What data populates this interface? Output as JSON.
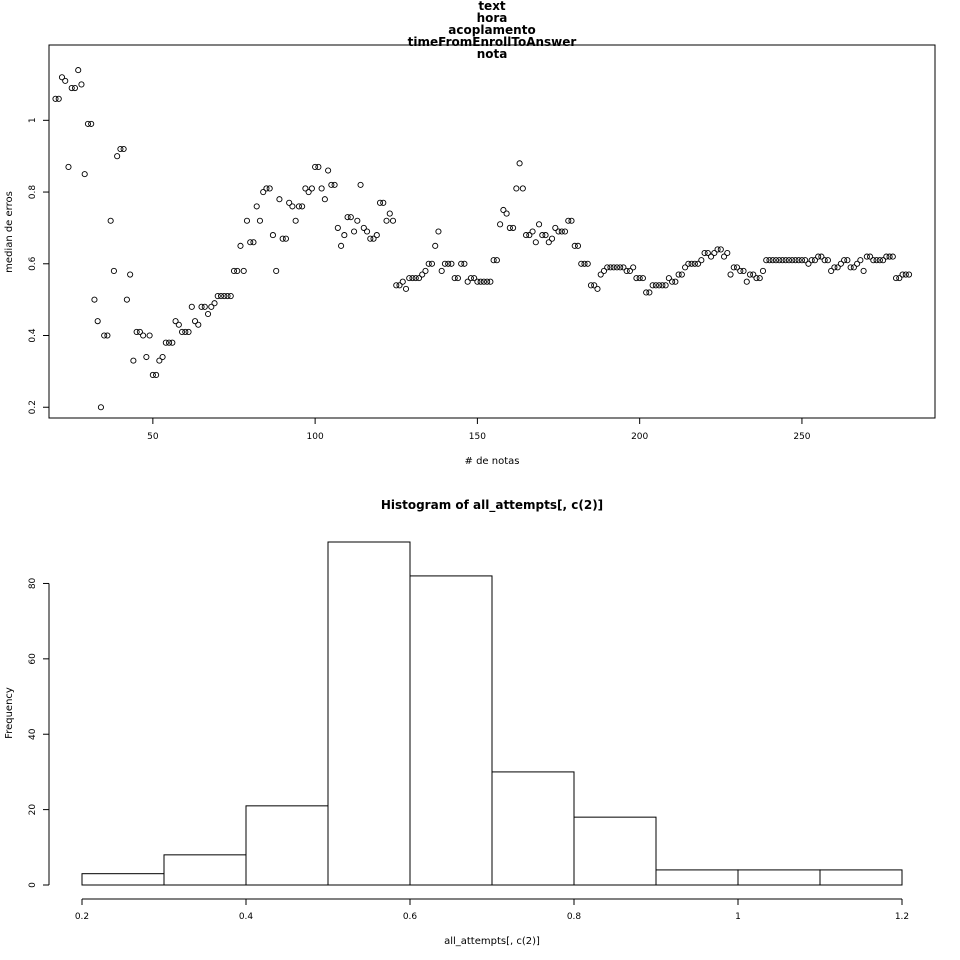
{
  "chart_data": [
    {
      "type": "scatter",
      "title_lines": [
        "text",
        "hora",
        "acoplamento",
        "timeFromEnrollToAnswer",
        "nota"
      ],
      "xlabel": "# de notas",
      "ylabel": "median de erros",
      "xlim": [
        18,
        291
      ],
      "ylim": [
        0.17,
        1.21
      ],
      "xticks": [
        50,
        100,
        150,
        200,
        250
      ],
      "yticks": [
        0.2,
        0.4,
        0.6,
        0.8,
        1.0
      ],
      "x": [
        20,
        21,
        22,
        23,
        24,
        25,
        26,
        27,
        28,
        29,
        30,
        31,
        32,
        33,
        34,
        35,
        36,
        37,
        38,
        39,
        40,
        41,
        42,
        43,
        44,
        45,
        46,
        47,
        48,
        49,
        50,
        51,
        52,
        53,
        54,
        55,
        56,
        57,
        58,
        59,
        60,
        61,
        62,
        63,
        64,
        65,
        66,
        67,
        68,
        69,
        70,
        71,
        72,
        73,
        74,
        75,
        76,
        77,
        78,
        79,
        80,
        81,
        82,
        83,
        84,
        85,
        86,
        87,
        88,
        89,
        90,
        91,
        92,
        93,
        94,
        95,
        96,
        97,
        98,
        99,
        100,
        101,
        102,
        103,
        104,
        105,
        106,
        107,
        108,
        109,
        110,
        111,
        112,
        113,
        114,
        115,
        116,
        117,
        118,
        119,
        120,
        121,
        122,
        123,
        124,
        125,
        126,
        127,
        128,
        129,
        130,
        131,
        132,
        133,
        134,
        135,
        136,
        137,
        138,
        139,
        140,
        141,
        142,
        143,
        144,
        145,
        146,
        147,
        148,
        149,
        150,
        151,
        152,
        153,
        154,
        155,
        156,
        157,
        158,
        159,
        160,
        161,
        162,
        163,
        164,
        165,
        166,
        167,
        168,
        169,
        170,
        171,
        172,
        173,
        174,
        175,
        176,
        177,
        178,
        179,
        180,
        181,
        182,
        183,
        184,
        185,
        186,
        187,
        188,
        189,
        190,
        191,
        192,
        193,
        194,
        195,
        196,
        197,
        198,
        199,
        200,
        201,
        202,
        203,
        204,
        205,
        206,
        207,
        208,
        209,
        210,
        211,
        212,
        213,
        214,
        215,
        216,
        217,
        218,
        219,
        220,
        221,
        222,
        223,
        224,
        225,
        226,
        227,
        228,
        229,
        230,
        231,
        232,
        233,
        234,
        235,
        236,
        237,
        238,
        239,
        240,
        241,
        242,
        243,
        244,
        245,
        246,
        247,
        248,
        249,
        250,
        251,
        252,
        253,
        254,
        255,
        256,
        257,
        258,
        259,
        260,
        261,
        262,
        263,
        264,
        265,
        266,
        267,
        268,
        269,
        270,
        271,
        272,
        273,
        274,
        275,
        276,
        277,
        278,
        279,
        280,
        281,
        282,
        283
      ],
      "y": [
        1.06,
        1.06,
        1.12,
        1.11,
        0.87,
        1.09,
        1.09,
        1.14,
        1.1,
        0.85,
        0.99,
        0.99,
        0.5,
        0.44,
        0.2,
        0.4,
        0.4,
        0.72,
        0.58,
        0.9,
        0.92,
        0.92,
        0.5,
        0.57,
        0.33,
        0.41,
        0.41,
        0.4,
        0.34,
        0.4,
        0.29,
        0.29,
        0.33,
        0.34,
        0.38,
        0.38,
        0.38,
        0.44,
        0.43,
        0.41,
        0.41,
        0.41,
        0.48,
        0.44,
        0.43,
        0.48,
        0.48,
        0.46,
        0.48,
        0.49,
        0.51,
        0.51,
        0.51,
        0.51,
        0.51,
        0.58,
        0.58,
        0.65,
        0.58,
        0.72,
        0.66,
        0.66,
        0.76,
        0.72,
        0.8,
        0.81,
        0.81,
        0.68,
        0.58,
        0.78,
        0.67,
        0.67,
        0.77,
        0.76,
        0.72,
        0.76,
        0.76,
        0.81,
        0.8,
        0.81,
        0.87,
        0.87,
        0.81,
        0.78,
        0.86,
        0.82,
        0.82,
        0.7,
        0.65,
        0.68,
        0.73,
        0.73,
        0.69,
        0.72,
        0.82,
        0.7,
        0.69,
        0.67,
        0.67,
        0.68,
        0.77,
        0.77,
        0.72,
        0.74,
        0.72,
        0.54,
        0.54,
        0.55,
        0.53,
        0.56,
        0.56,
        0.56,
        0.56,
        0.57,
        0.58,
        0.6,
        0.6,
        0.65,
        0.69,
        0.58,
        0.6,
        0.6,
        0.6,
        0.56,
        0.56,
        0.6,
        0.6,
        0.55,
        0.56,
        0.56,
        0.55,
        0.55,
        0.55,
        0.55,
        0.55,
        0.61,
        0.61,
        0.71,
        0.75,
        0.74,
        0.7,
        0.7,
        0.81,
        0.88,
        0.81,
        0.68,
        0.68,
        0.69,
        0.66,
        0.71,
        0.68,
        0.68,
        0.66,
        0.67,
        0.7,
        0.69,
        0.69,
        0.69,
        0.72,
        0.72,
        0.65,
        0.65,
        0.6,
        0.6,
        0.6,
        0.54,
        0.54,
        0.53,
        0.57,
        0.58,
        0.59,
        0.59,
        0.59,
        0.59,
        0.59,
        0.59,
        0.58,
        0.58,
        0.59,
        0.56,
        0.56,
        0.56,
        0.52,
        0.52,
        0.54,
        0.54,
        0.54,
        0.54,
        0.54,
        0.56,
        0.55,
        0.55,
        0.57,
        0.57,
        0.59,
        0.6,
        0.6,
        0.6,
        0.6,
        0.61,
        0.63,
        0.63,
        0.62,
        0.63,
        0.64,
        0.64,
        0.62,
        0.63,
        0.57,
        0.59,
        0.59,
        0.58,
        0.58,
        0.55,
        0.57,
        0.57,
        0.56,
        0.56,
        0.58,
        0.61,
        0.61,
        0.61,
        0.61,
        0.61,
        0.61,
        0.61,
        0.61,
        0.61,
        0.61,
        0.61,
        0.61,
        0.61,
        0.6,
        0.61,
        0.61,
        0.62,
        0.62,
        0.61,
        0.61,
        0.58,
        0.59,
        0.59,
        0.6,
        0.61,
        0.61,
        0.59,
        0.59,
        0.6,
        0.61,
        0.58,
        0.62,
        0.62,
        0.61,
        0.61,
        0.61,
        0.61,
        0.62,
        0.62,
        0.62,
        0.56,
        0.56,
        0.57,
        0.57,
        0.57
      ]
    },
    {
      "type": "histogram",
      "title": "Histogram of all_attempts[, c(2)]",
      "xlabel": "all_attempts[, c(2)]",
      "ylabel": "Frequency",
      "xlim": [
        0.2,
        1.2
      ],
      "ylim": [
        0,
        91
      ],
      "xticks": [
        0.2,
        0.4,
        0.6,
        0.8,
        1.0,
        1.2
      ],
      "yticks": [
        0,
        20,
        40,
        60,
        80
      ],
      "breaks": [
        0.2,
        0.3,
        0.4,
        0.5,
        0.6,
        0.7,
        0.8,
        0.9,
        1.0,
        1.1,
        1.2
      ],
      "counts": [
        3,
        8,
        21,
        91,
        82,
        30,
        18,
        4,
        4,
        4
      ]
    }
  ]
}
